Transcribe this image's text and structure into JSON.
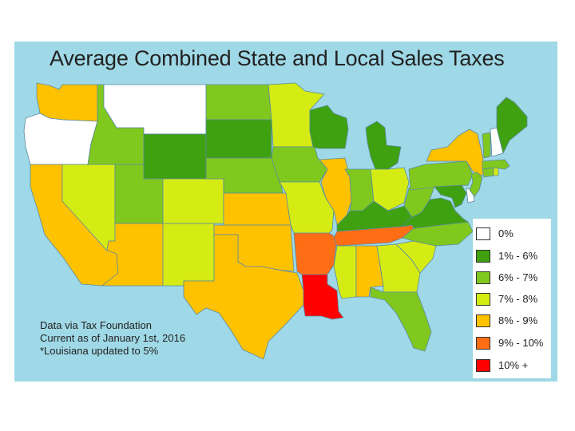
{
  "title": "Average Combined State and Local Sales Taxes",
  "notes": [
    "Data via Tax Foundation",
    "Current as of January 1st, 2016",
    "*Louisiana updated to 5%"
  ],
  "legend": [
    {
      "label": "0%",
      "color": "#ffffff"
    },
    {
      "label": "1% - 6%",
      "color": "#3fa10f"
    },
    {
      "label": "6% - 7%",
      "color": "#80c81e"
    },
    {
      "label": "7% - 8%",
      "color": "#d4ec14"
    },
    {
      "label": "8% - 9%",
      "color": "#ffc200"
    },
    {
      "label": "9% - 10%",
      "color": "#ff6e14"
    },
    {
      "label": "10% +",
      "color": "#ff0000"
    }
  ],
  "colors": {
    "water": "#9fd8e6",
    "state_border": "#5a8aa0"
  },
  "states": [
    {
      "state": "Washington",
      "category": "8% - 9%"
    },
    {
      "state": "Oregon",
      "category": "0%"
    },
    {
      "state": "California",
      "category": "8% - 9%"
    },
    {
      "state": "Nevada",
      "category": "7% - 8%"
    },
    {
      "state": "Idaho",
      "category": "6% - 7%"
    },
    {
      "state": "Montana",
      "category": "0%"
    },
    {
      "state": "Wyoming",
      "category": "1% - 6%"
    },
    {
      "state": "Utah",
      "category": "6% - 7%"
    },
    {
      "state": "Arizona",
      "category": "8% - 9%"
    },
    {
      "state": "Colorado",
      "category": "7% - 8%"
    },
    {
      "state": "New Mexico",
      "category": "7% - 8%"
    },
    {
      "state": "North Dakota",
      "category": "6% - 7%"
    },
    {
      "state": "South Dakota",
      "category": "1% - 6%"
    },
    {
      "state": "Nebraska",
      "category": "6% - 7%"
    },
    {
      "state": "Kansas",
      "category": "8% - 9%"
    },
    {
      "state": "Oklahoma",
      "category": "8% - 9%"
    },
    {
      "state": "Texas",
      "category": "8% - 9%"
    },
    {
      "state": "Minnesota",
      "category": "7% - 8%"
    },
    {
      "state": "Iowa",
      "category": "6% - 7%"
    },
    {
      "state": "Missouri",
      "category": "7% - 8%"
    },
    {
      "state": "Arkansas",
      "category": "9% - 10%"
    },
    {
      "state": "Louisiana",
      "category": "10% +"
    },
    {
      "state": "Wisconsin",
      "category": "1% - 6%"
    },
    {
      "state": "Illinois",
      "category": "8% - 9%"
    },
    {
      "state": "Michigan",
      "category": "1% - 6%"
    },
    {
      "state": "Indiana",
      "category": "6% - 7%"
    },
    {
      "state": "Ohio",
      "category": "7% - 8%"
    },
    {
      "state": "Kentucky",
      "category": "1% - 6%"
    },
    {
      "state": "Tennessee",
      "category": "9% - 10%"
    },
    {
      "state": "Mississippi",
      "category": "7% - 8%"
    },
    {
      "state": "Alabama",
      "category": "8% - 9%"
    },
    {
      "state": "Georgia",
      "category": "7% - 8%"
    },
    {
      "state": "Florida",
      "category": "6% - 7%"
    },
    {
      "state": "South Carolina",
      "category": "7% - 8%"
    },
    {
      "state": "North Carolina",
      "category": "6% - 7%"
    },
    {
      "state": "Virginia",
      "category": "1% - 6%"
    },
    {
      "state": "West Virginia",
      "category": "6% - 7%"
    },
    {
      "state": "Pennsylvania",
      "category": "6% - 7%"
    },
    {
      "state": "New York",
      "category": "8% - 9%"
    },
    {
      "state": "Maryland",
      "category": "1% - 6%"
    },
    {
      "state": "Delaware",
      "category": "0%"
    },
    {
      "state": "New Jersey",
      "category": "6% - 7%"
    },
    {
      "state": "Connecticut",
      "category": "6% - 7%"
    },
    {
      "state": "Rhode Island",
      "category": "7% - 8%"
    },
    {
      "state": "Massachusetts",
      "category": "6% - 7%"
    },
    {
      "state": "Vermont",
      "category": "6% - 7%"
    },
    {
      "state": "New Hampshire",
      "category": "0%"
    },
    {
      "state": "Maine",
      "category": "1% - 6%"
    }
  ]
}
